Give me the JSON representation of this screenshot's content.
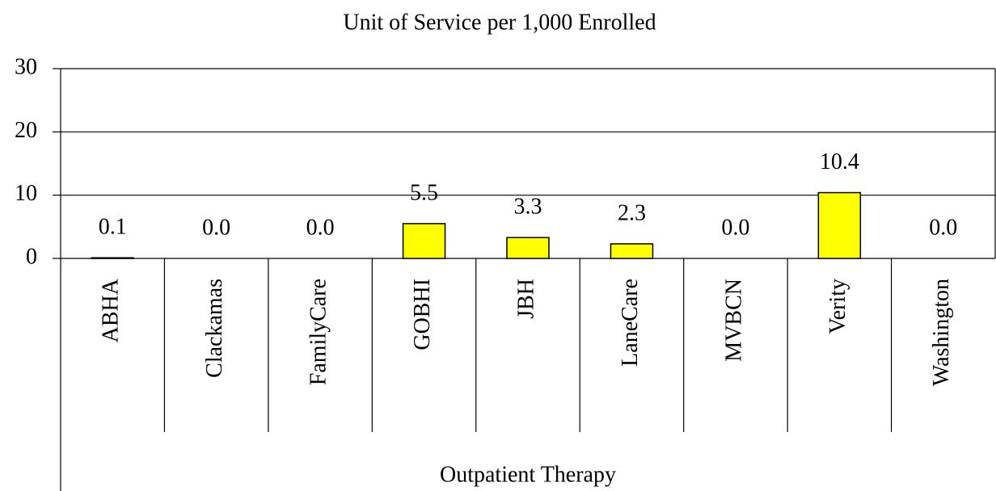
{
  "chart_data": {
    "type": "bar",
    "title": "Unit of Service per 1,000 Enrolled",
    "categories": [
      "ABHA",
      "Clackamas",
      "FamilyCare",
      "GOBHI",
      "JBH",
      "LaneCare",
      "MVBCN",
      "Verity",
      "Washington"
    ],
    "values": [
      0.1,
      0,
      0,
      5.5,
      3.3,
      2.3,
      0,
      10.4,
      0
    ],
    "value_labels": [
      "0.1",
      "0.0",
      "0.0",
      "5.5",
      "3.3",
      "2.3",
      "0.0",
      "10.4",
      "0.0"
    ],
    "x_label": "Outpatient Therapy",
    "color": "#ffff00",
    "ylim": [
      0,
      30
    ],
    "yticks": [
      0,
      10,
      20,
      30
    ],
    "grid": true
  }
}
